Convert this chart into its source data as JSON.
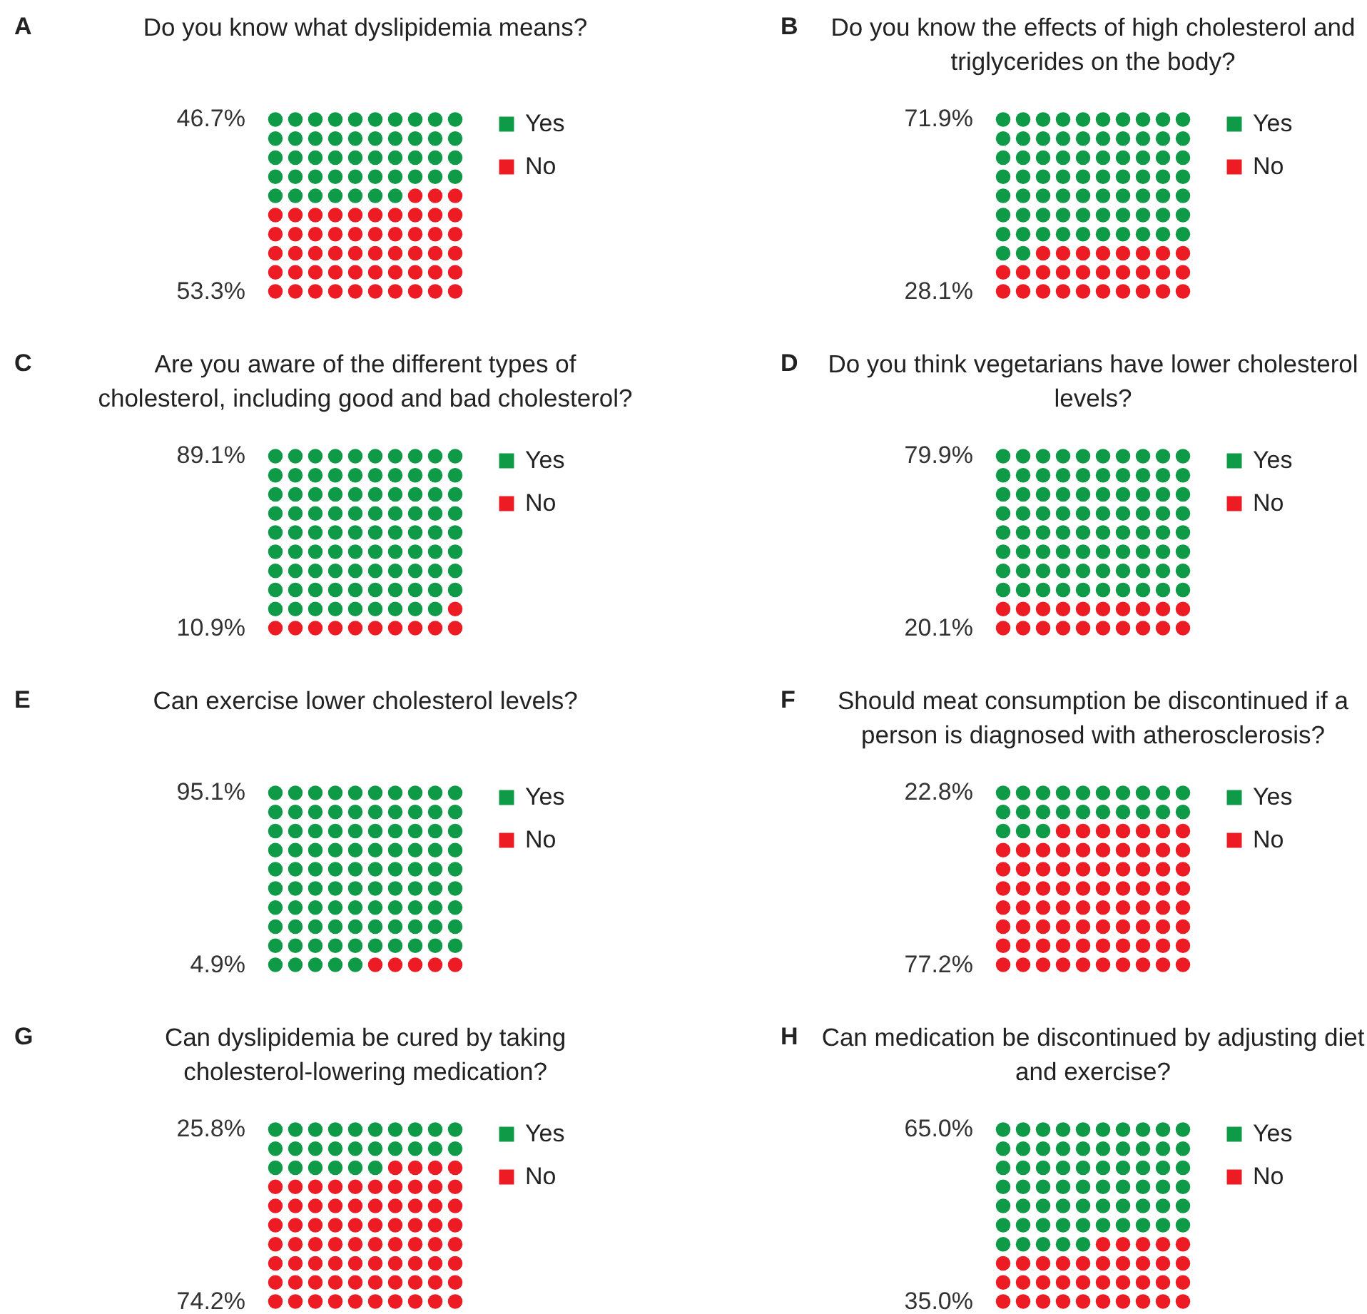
{
  "chart_data": [
    {
      "type": "other",
      "title": "Do you know what dyslipidemia means?",
      "categories": [
        "Yes",
        "No"
      ],
      "values": [
        46.7,
        53.3
      ],
      "value_labels": [
        "46.7%",
        "53.3%"
      ],
      "colors": [
        "#0f9a48",
        "#ed1c24"
      ],
      "annotations": [
        "A"
      ]
    },
    {
      "type": "other",
      "title": "Do you know the effects of high cholesterol and triglycerides on the body?",
      "categories": [
        "Yes",
        "No"
      ],
      "values": [
        71.9,
        28.1
      ],
      "value_labels": [
        "71.9%",
        "28.1%"
      ],
      "colors": [
        "#0f9a48",
        "#ed1c24"
      ],
      "annotations": [
        "B"
      ]
    },
    {
      "type": "other",
      "title": "Are you aware of the different types of cholesterol, including good and bad cholesterol?",
      "categories": [
        "Yes",
        "No"
      ],
      "values": [
        89.1,
        10.9
      ],
      "value_labels": [
        "89.1%",
        "10.9%"
      ],
      "colors": [
        "#0f9a48",
        "#ed1c24"
      ],
      "annotations": [
        "C"
      ]
    },
    {
      "type": "other",
      "title": "Do you think vegetarians have lower cholesterol levels?",
      "categories": [
        "Yes",
        "No"
      ],
      "values": [
        79.9,
        20.1
      ],
      "value_labels": [
        "79.9%",
        "20.1%"
      ],
      "colors": [
        "#0f9a48",
        "#ed1c24"
      ],
      "annotations": [
        "D"
      ]
    },
    {
      "type": "other",
      "title": "Can exercise lower cholesterol levels?",
      "categories": [
        "Yes",
        "No"
      ],
      "values": [
        95.1,
        4.9
      ],
      "value_labels": [
        "95.1%",
        "4.9%"
      ],
      "colors": [
        "#0f9a48",
        "#ed1c24"
      ],
      "annotations": [
        "E"
      ]
    },
    {
      "type": "other",
      "title": "Should meat consumption be discontinued if a person is diagnosed with atherosclerosis?",
      "categories": [
        "Yes",
        "No"
      ],
      "values": [
        22.8,
        77.2
      ],
      "value_labels": [
        "22.8%",
        "77.2%"
      ],
      "colors": [
        "#0f9a48",
        "#ed1c24"
      ],
      "annotations": [
        "F"
      ]
    },
    {
      "type": "other",
      "title": "Can dyslipidemia be cured by taking cholesterol-lowering medication?",
      "categories": [
        "Yes",
        "No"
      ],
      "values": [
        25.8,
        74.2
      ],
      "value_labels": [
        "25.8%",
        "74.2%"
      ],
      "colors": [
        "#0f9a48",
        "#ed1c24"
      ],
      "annotations": [
        "G"
      ]
    },
    {
      "type": "other",
      "title": "Can medication be discontinued by adjusting diet and exercise?",
      "categories": [
        "Yes",
        "No"
      ],
      "values": [
        65.0,
        35.0
      ],
      "value_labels": [
        "65.0%",
        "35.0%"
      ],
      "colors": [
        "#0f9a48",
        "#ed1c24"
      ],
      "annotations": [
        "H"
      ]
    }
  ]
}
